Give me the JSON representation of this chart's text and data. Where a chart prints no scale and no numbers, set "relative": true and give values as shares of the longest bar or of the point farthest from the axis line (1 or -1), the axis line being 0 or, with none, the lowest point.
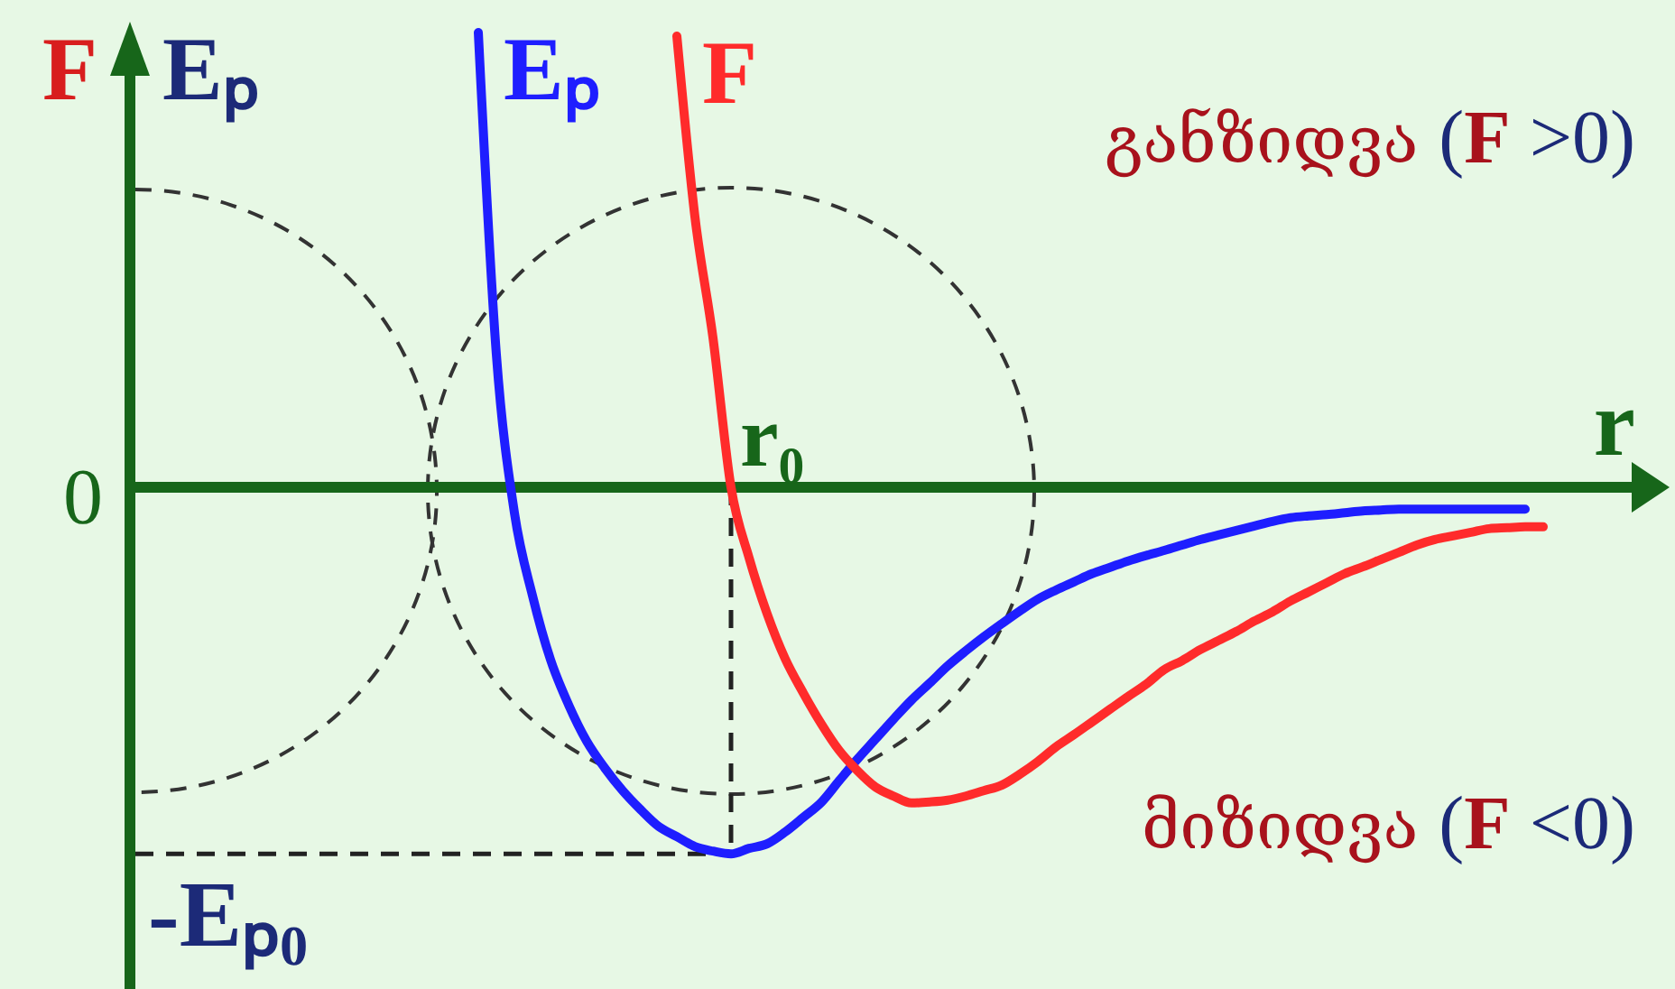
{
  "chart_data": {
    "type": "line",
    "relative": true,
    "ylabel": "F Eₚ",
    "xlabel": "r",
    "categories": [
      null,
      null,
      null,
      null,
      null,
      null,
      null,
      null,
      null,
      null,
      null,
      null,
      null,
      null,
      null,
      null,
      null,
      null,
      null,
      null,
      null,
      null,
      null,
      null,
      null,
      null,
      null,
      null,
      null,
      null,
      null,
      null,
      null,
      null,
      null,
      null,
      null,
      null,
      null,
      null,
      null,
      null,
      null,
      null,
      null,
      null,
      null,
      null,
      null,
      null,
      null,
      null,
      null,
      null,
      null,
      null,
      null,
      null,
      null,
      null,
      null,
      null,
      null,
      null,
      null,
      null,
      null,
      null,
      null,
      null,
      null,
      null,
      null,
      null,
      null,
      null,
      null,
      null,
      null,
      null,
      null,
      null,
      null,
      null
    ],
    "series": [
      {
        "name": "Eₚ",
        "color": "#1e1eff",
        "values": [
          null,
          null,
          null,
          null,
          null,
          null,
          null,
          null,
          null,
          null,
          null,
          null,
          null,
          null,
          null,
          null,
          null,
          null,
          null,
          1,
          0.292,
          -0.056,
          -0.238,
          -0.379,
          -0.478,
          -0.558,
          -0.617,
          -0.667,
          -0.709,
          -0.746,
          -0.768,
          -0.79,
          -0.8,
          -0.806,
          -0.794,
          -0.784,
          -0.758,
          -0.726,
          -0.693,
          -0.645,
          -0.598,
          -0.554,
          -0.51,
          -0.468,
          -0.431,
          -0.393,
          -0.36,
          -0.329,
          -0.3,
          -0.272,
          -0.246,
          -0.226,
          -0.208,
          -0.19,
          -0.176,
          -0.162,
          -0.15,
          -0.139,
          -0.127,
          -0.115,
          -0.105,
          -0.095,
          -0.085,
          -0.075,
          -0.067,
          -0.063,
          -0.06,
          -0.056,
          -0.052,
          -0.05,
          -0.048,
          -0.048,
          -0.048,
          -0.048,
          -0.048,
          -0.048,
          -0.048,
          -0.048,
          null,
          null,
          null,
          null,
          null,
          null
        ]
      },
      {
        "name": "F",
        "color": "#ff2b2b",
        "values": [
          null,
          null,
          null,
          null,
          null,
          null,
          null,
          null,
          null,
          null,
          null,
          null,
          null,
          null,
          null,
          null,
          null,
          null,
          null,
          null,
          null,
          null,
          null,
          null,
          null,
          null,
          null,
          null,
          null,
          null,
          0.992,
          0.595,
          0.329,
          0,
          -0.155,
          -0.278,
          -0.377,
          -0.452,
          -0.52,
          -0.579,
          -0.623,
          -0.659,
          -0.679,
          -0.694,
          -0.692,
          -0.688,
          -0.679,
          -0.667,
          -0.655,
          -0.631,
          -0.603,
          -0.571,
          -0.544,
          -0.516,
          -0.488,
          -0.46,
          -0.433,
          -0.401,
          -0.381,
          -0.357,
          -0.337,
          -0.317,
          -0.294,
          -0.274,
          -0.25,
          -0.23,
          -0.21,
          -0.19,
          -0.175,
          -0.159,
          -0.143,
          -0.127,
          -0.115,
          -0.107,
          -0.099,
          -0.091,
          -0.089,
          -0.087,
          -0.087,
          null,
          null,
          null,
          null,
          null
        ]
      }
    ],
    "ref_lines": [
      {
        "axis": "y",
        "value": 0,
        "color": "#17661a"
      },
      {
        "axis": "x",
        "label": "r₀",
        "color": "#222222",
        "line_style": "dashed"
      },
      {
        "axis": "y",
        "value": -0.806,
        "label": "-Eₚ₀",
        "color": "#222222",
        "line_style": "dashed"
      }
    ],
    "annotations": [
      "0",
      "განზიდვა (F >0)",
      "მიზიდვა (F <0)"
    ]
  }
}
